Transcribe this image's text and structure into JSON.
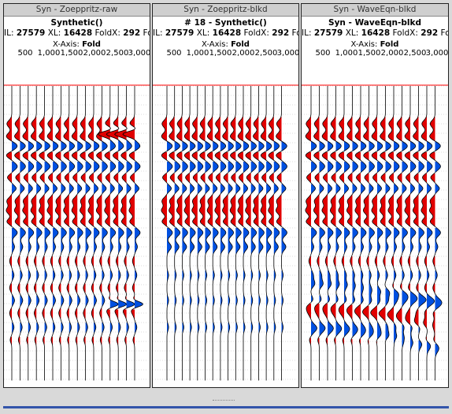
{
  "panels": [
    {
      "window_title": "Syn - Zoeppritz-raw",
      "dataset": "Synthetic()",
      "info": {
        "il_label": "IL:",
        "il": "27579",
        "xl_label": "XL:",
        "xl": "16428",
        "foldx_label": "FoldX:",
        "foldx": "292",
        "foldy_label": "FoldY:"
      },
      "axis_label_prefix": "X-Axis:",
      "axis_label_value": "Fold",
      "ticks": [
        "500",
        "1,000",
        "1,500",
        "2,000",
        "2,500",
        "3,000"
      ]
    },
    {
      "window_title": "Syn - Zoeppritz-blkd",
      "dataset": "# 18 - Synthetic()",
      "info": {
        "il_label": "IL:",
        "il": "27579",
        "xl_label": "XL:",
        "xl": "16428",
        "foldx_label": "FoldX:",
        "foldx": "292",
        "foldy_label": "FoldY:"
      },
      "axis_label_prefix": "X-Axis:",
      "axis_label_value": "Fold",
      "ticks": [
        "500",
        "1,000",
        "1,500",
        "2,000",
        "2,500",
        "3,000"
      ]
    },
    {
      "window_title": "Syn - WaveEqn-blkd",
      "dataset": "Syn - WaveEqn-blkd",
      "info": {
        "il_label": "IL:",
        "il": "27579",
        "xl_label": "XL:",
        "xl": "16428",
        "foldx_label": "FoldX:",
        "foldx": "292",
        "foldy_label": "FoldY:"
      },
      "axis_label_prefix": "X-Axis:",
      "axis_label_value": "Fold",
      "ticks": [
        "500",
        "1,000",
        "1,500",
        "2,000",
        "2,500",
        "3,000"
      ]
    }
  ],
  "colors": {
    "positive": "#e00000",
    "negative": "#0050e0",
    "wiggle": "#000000",
    "grid": "#bbbbbb",
    "marker": "#ff0000"
  }
}
